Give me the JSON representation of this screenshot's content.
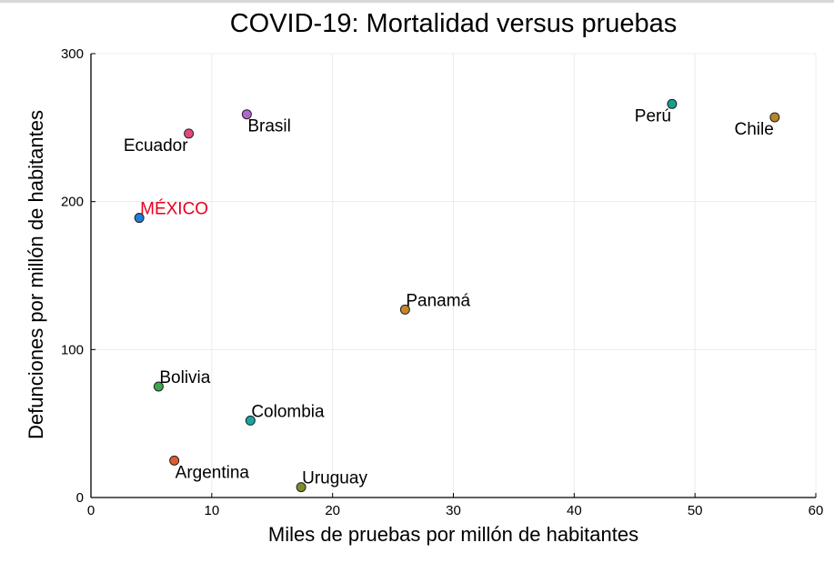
{
  "chart_data": {
    "type": "scatter",
    "title": "COVID-19: Mortalidad versus pruebas",
    "xlabel": "Miles de pruebas por millón de habitantes",
    "ylabel": "Defunciones por millón de habitantes",
    "xlim": [
      0,
      60
    ],
    "ylim": [
      0,
      300
    ],
    "xticks": [
      0,
      10,
      20,
      30,
      40,
      50,
      60
    ],
    "yticks": [
      0,
      100,
      200,
      300
    ],
    "grid": true,
    "legend": "none",
    "points": [
      {
        "name": "MÉXICO",
        "x": 4.0,
        "y": 189,
        "color": "#1f7fd8",
        "label_color": "#e8001f",
        "label_pos": "upper-right"
      },
      {
        "name": "Argentina",
        "x": 6.9,
        "y": 25,
        "color": "#e05a2b",
        "label_color": "#000000",
        "label_pos": "lower-right"
      },
      {
        "name": "Bolivia",
        "x": 5.6,
        "y": 75,
        "color": "#3ea64d",
        "label_color": "#000000",
        "label_pos": "upper-right"
      },
      {
        "name": "Brasil",
        "x": 12.9,
        "y": 259,
        "color": "#b366cc",
        "label_color": "#000000",
        "label_pos": "lower-right"
      },
      {
        "name": "Chile",
        "x": 56.6,
        "y": 257,
        "color": "#b5862a",
        "label_color": "#000000",
        "label_pos": "lower-left"
      },
      {
        "name": "Colombia",
        "x": 13.2,
        "y": 52,
        "color": "#17a6a6",
        "label_color": "#000000",
        "label_pos": "upper-right"
      },
      {
        "name": "Ecuador",
        "x": 8.1,
        "y": 246,
        "color": "#e0497e",
        "label_color": "#000000",
        "label_pos": "lower-left"
      },
      {
        "name": "Panamá",
        "x": 26.0,
        "y": 127,
        "color": "#c8842b",
        "label_color": "#000000",
        "label_pos": "upper-right"
      },
      {
        "name": "Perú",
        "x": 48.1,
        "y": 266,
        "color": "#11a08e",
        "label_color": "#000000",
        "label_pos": "lower-left"
      },
      {
        "name": "Uruguay",
        "x": 17.4,
        "y": 7,
        "color": "#7d8b2a",
        "label_color": "#000000",
        "label_pos": "upper-right"
      }
    ]
  }
}
